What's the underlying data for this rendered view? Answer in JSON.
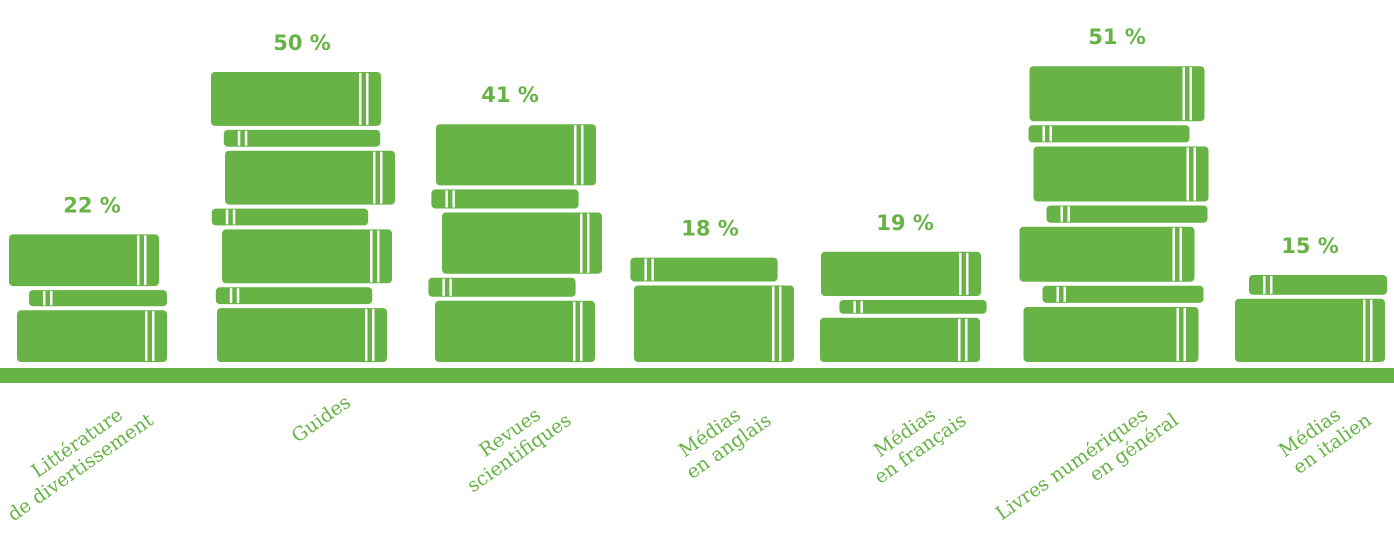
{
  "chart_data": {
    "type": "bar",
    "title": "",
    "xlabel": "",
    "ylabel": "",
    "ylim": [
      0,
      55
    ],
    "value_suffix": " %",
    "categories": [
      [
        "Littérature",
        "de divertissement"
      ],
      [
        "Guides"
      ],
      [
        "Revues",
        "scientifiques"
      ],
      [
        "Médias",
        "en anglais"
      ],
      [
        "Médias",
        "en français"
      ],
      [
        "Livres numériques",
        "en général"
      ],
      [
        "Médias",
        "en italien"
      ]
    ],
    "values": [
      22,
      50,
      41,
      18,
      19,
      51,
      15
    ],
    "labels": [
      "22 %",
      "50 %",
      "41 %",
      "18 %",
      "19 %",
      "51 %",
      "15 %"
    ]
  },
  "colors": {
    "bar": "#67b346",
    "spine": "#ffffff"
  }
}
